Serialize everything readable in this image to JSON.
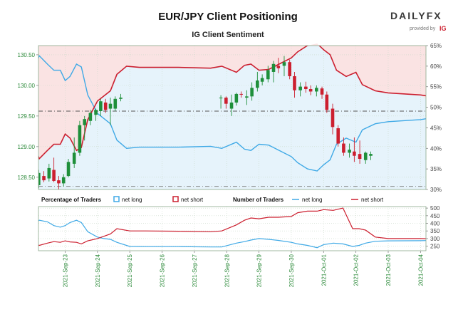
{
  "chart_data": {
    "type": "candlestick",
    "title": "EUR/JPY Client Positioning",
    "subtitle": "IG Client Sentiment",
    "brand": {
      "name": "DAILYFX",
      "tagline": "provided by",
      "partner": "IG"
    },
    "colors": {
      "up": "#1e8f3a",
      "down": "#cc1f2f",
      "net_long": "#3fa9e6",
      "net_short": "#cc1f2f",
      "short_zone": "#fae3e3",
      "long_zone": "#e6f3fb",
      "axis_text": "#2c8a3a",
      "grid": "#c9d9c9"
    },
    "x_dates": [
      "2021-Sep-23",
      "2021-Sep-24",
      "2021-Sep-25",
      "2021-Sep-26",
      "2021-Sep-27",
      "2021-Sep-28",
      "2021-Sep-29",
      "2021-Sep-30",
      "2021-Oct-01",
      "2021-Oct-02",
      "2021-Oct-03",
      "2021-Oct-04"
    ],
    "price_axis": {
      "ylim": [
        128.3,
        130.65
      ],
      "ticks": [
        "128.50",
        "129.00",
        "129.50",
        "130.00",
        "130.50"
      ],
      "current_price": 129.58
    },
    "pct_axis": {
      "ylim": [
        30,
        65
      ],
      "ticks": [
        "30%",
        "35%",
        "40%",
        "45%",
        "50%",
        "55%",
        "60%",
        "65%"
      ]
    },
    "count_axis": {
      "ylim": [
        220,
        510
      ],
      "ticks": [
        "250",
        "300",
        "350",
        "400",
        "450",
        "500"
      ]
    },
    "candles": [
      {
        "x": -0.82,
        "o": 128.37,
        "h": 128.62,
        "l": 128.32,
        "c": 128.57
      },
      {
        "x": -0.66,
        "o": 128.52,
        "h": 128.6,
        "l": 128.42,
        "c": 128.45
      },
      {
        "x": -0.5,
        "o": 128.48,
        "h": 128.72,
        "l": 128.43,
        "c": 128.65
      },
      {
        "x": -0.35,
        "o": 128.62,
        "h": 128.82,
        "l": 128.42,
        "c": 128.44
      },
      {
        "x": -0.2,
        "o": 128.45,
        "h": 128.52,
        "l": 128.3,
        "c": 128.4
      },
      {
        "x": -0.05,
        "o": 128.4,
        "h": 128.55,
        "l": 128.35,
        "c": 128.5
      },
      {
        "x": 0.1,
        "o": 128.52,
        "h": 128.8,
        "l": 128.5,
        "c": 128.75
      },
      {
        "x": 0.28,
        "o": 128.72,
        "h": 129.15,
        "l": 128.65,
        "c": 128.9
      },
      {
        "x": 0.45,
        "o": 128.9,
        "h": 129.42,
        "l": 128.85,
        "c": 129.35
      },
      {
        "x": 0.6,
        "o": 129.35,
        "h": 129.5,
        "l": 129.1,
        "c": 129.45
      },
      {
        "x": 0.78,
        "o": 129.42,
        "h": 129.6,
        "l": 129.35,
        "c": 129.55
      },
      {
        "x": 0.95,
        "o": 129.52,
        "h": 129.62,
        "l": 129.42,
        "c": 129.6
      },
      {
        "x": 1.1,
        "o": 129.58,
        "h": 129.78,
        "l": 129.5,
        "c": 129.74
      },
      {
        "x": 1.25,
        "o": 129.72,
        "h": 129.78,
        "l": 129.55,
        "c": 129.6
      },
      {
        "x": 1.4,
        "o": 129.62,
        "h": 129.8,
        "l": 129.35,
        "c": 129.7
      },
      {
        "x": 1.55,
        "o": 129.62,
        "h": 129.82,
        "l": 129.58,
        "c": 129.78
      },
      {
        "x": 1.72,
        "o": 129.78,
        "h": 129.86,
        "l": 129.74,
        "c": 129.8
      },
      {
        "x": 4.82,
        "o": 129.79,
        "h": 129.84,
        "l": 129.62,
        "c": 129.8
      },
      {
        "x": 4.98,
        "o": 129.8,
        "h": 129.82,
        "l": 129.62,
        "c": 129.7
      },
      {
        "x": 5.15,
        "o": 129.62,
        "h": 129.85,
        "l": 129.5,
        "c": 129.72
      },
      {
        "x": 5.3,
        "o": 129.72,
        "h": 129.88,
        "l": 129.67,
        "c": 129.86
      },
      {
        "x": 5.45,
        "o": 129.86,
        "h": 129.9,
        "l": 129.8,
        "c": 129.85
      },
      {
        "x": 5.62,
        "o": 129.8,
        "h": 129.92,
        "l": 129.68,
        "c": 129.82
      },
      {
        "x": 5.78,
        "o": 129.82,
        "h": 130.05,
        "l": 129.75,
        "c": 129.96
      },
      {
        "x": 5.95,
        "o": 129.96,
        "h": 130.22,
        "l": 129.9,
        "c": 130.08
      },
      {
        "x": 6.1,
        "o": 130.06,
        "h": 130.18,
        "l": 130.0,
        "c": 130.12
      },
      {
        "x": 6.28,
        "o": 130.1,
        "h": 130.32,
        "l": 130.05,
        "c": 130.25
      },
      {
        "x": 6.45,
        "o": 130.22,
        "h": 130.4,
        "l": 130.05,
        "c": 130.35
      },
      {
        "x": 6.6,
        "o": 130.32,
        "h": 130.45,
        "l": 130.2,
        "c": 130.28
      },
      {
        "x": 6.78,
        "o": 130.32,
        "h": 130.48,
        "l": 130.15,
        "c": 130.38
      },
      {
        "x": 6.95,
        "o": 130.38,
        "h": 130.42,
        "l": 130.1,
        "c": 130.15
      },
      {
        "x": 7.1,
        "o": 130.15,
        "h": 130.22,
        "l": 129.8,
        "c": 129.92
      },
      {
        "x": 7.28,
        "o": 129.92,
        "h": 130.05,
        "l": 129.82,
        "c": 129.98
      },
      {
        "x": 7.45,
        "o": 129.98,
        "h": 130.06,
        "l": 129.88,
        "c": 129.94
      },
      {
        "x": 7.6,
        "o": 129.94,
        "h": 130.0,
        "l": 129.84,
        "c": 129.9
      },
      {
        "x": 7.78,
        "o": 129.9,
        "h": 130.0,
        "l": 129.82,
        "c": 129.96
      },
      {
        "x": 7.95,
        "o": 129.95,
        "h": 129.98,
        "l": 129.78,
        "c": 129.85
      },
      {
        "x": 8.1,
        "o": 129.85,
        "h": 129.9,
        "l": 129.55,
        "c": 129.6
      },
      {
        "x": 8.28,
        "o": 129.62,
        "h": 129.7,
        "l": 129.2,
        "c": 129.32
      },
      {
        "x": 8.45,
        "o": 129.3,
        "h": 129.35,
        "l": 129.0,
        "c": 129.05
      },
      {
        "x": 8.62,
        "o": 129.05,
        "h": 129.15,
        "l": 128.85,
        "c": 128.9
      },
      {
        "x": 8.8,
        "o": 128.9,
        "h": 129.05,
        "l": 128.82,
        "c": 128.95
      },
      {
        "x": 8.95,
        "o": 128.92,
        "h": 129.15,
        "l": 128.75,
        "c": 128.85
      },
      {
        "x": 9.12,
        "o": 128.88,
        "h": 129.1,
        "l": 128.72,
        "c": 128.8
      },
      {
        "x": 9.3,
        "o": 128.78,
        "h": 128.92,
        "l": 128.72,
        "c": 128.9
      },
      {
        "x": 9.46,
        "o": 128.85,
        "h": 128.92,
        "l": 128.78,
        "c": 128.88
      },
      {
        "x": 11.28,
        "o": 128.6,
        "h": 128.9,
        "l": 128.4,
        "c": 128.88
      },
      {
        "x": 11.46,
        "o": 128.85,
        "h": 128.95,
        "l": 128.7,
        "c": 128.9
      },
      {
        "x": 11.62,
        "o": 128.9,
        "h": 128.95,
        "l": 128.82,
        "c": 128.88
      },
      {
        "x": 11.78,
        "o": 128.9,
        "h": 129.22,
        "l": 128.85,
        "c": 129.2
      }
    ],
    "series": [
      {
        "name": "net long",
        "percent": [
          [
            -0.95,
            59.8
          ],
          [
            -0.8,
            62.5
          ],
          [
            -0.55,
            60.5
          ],
          [
            -0.35,
            59.0
          ],
          [
            -0.15,
            59.0
          ],
          [
            0.0,
            56.5
          ],
          [
            0.15,
            57.5
          ],
          [
            0.35,
            60.5
          ],
          [
            0.5,
            59.8
          ],
          [
            0.7,
            53.0
          ],
          [
            1.0,
            48.5
          ],
          [
            1.4,
            46.0
          ],
          [
            1.6,
            42.0
          ],
          [
            1.9,
            40.0
          ],
          [
            2.3,
            40.3
          ],
          [
            3.5,
            40.3
          ],
          [
            4.5,
            40.5
          ],
          [
            4.85,
            40.0
          ],
          [
            5.3,
            41.5
          ],
          [
            5.55,
            39.8
          ],
          [
            5.75,
            39.5
          ],
          [
            6.0,
            41.0
          ],
          [
            6.3,
            40.8
          ],
          [
            6.6,
            39.6
          ],
          [
            7.0,
            38.0
          ],
          [
            7.2,
            36.5
          ],
          [
            7.5,
            35.0
          ],
          [
            7.8,
            34.5
          ],
          [
            8.0,
            36.0
          ],
          [
            8.2,
            37.2
          ],
          [
            8.4,
            41.0
          ],
          [
            8.7,
            42.5
          ],
          [
            9.0,
            41.5
          ],
          [
            9.2,
            44.5
          ],
          [
            9.6,
            46.0
          ],
          [
            10.0,
            46.5
          ],
          [
            11.0,
            47.0
          ],
          [
            11.8,
            48.0
          ],
          [
            12.0,
            49.5
          ]
        ],
        "traders": [
          [
            -0.95,
            395
          ],
          [
            -0.8,
            420
          ],
          [
            -0.55,
            410
          ],
          [
            -0.35,
            385
          ],
          [
            -0.15,
            375
          ],
          [
            0.0,
            385
          ],
          [
            0.15,
            405
          ],
          [
            0.35,
            420
          ],
          [
            0.5,
            405
          ],
          [
            0.7,
            345
          ],
          [
            1.0,
            310
          ],
          [
            1.2,
            300
          ],
          [
            1.4,
            295
          ],
          [
            1.6,
            275
          ],
          [
            2.0,
            248
          ],
          [
            2.5,
            247
          ],
          [
            3.5,
            247
          ],
          [
            4.5,
            245
          ],
          [
            4.85,
            245
          ],
          [
            5.3,
            270
          ],
          [
            5.55,
            280
          ],
          [
            5.75,
            290
          ],
          [
            6.0,
            300
          ],
          [
            6.3,
            295
          ],
          [
            6.6,
            288
          ],
          [
            7.0,
            275
          ],
          [
            7.2,
            265
          ],
          [
            7.5,
            255
          ],
          [
            7.8,
            240
          ],
          [
            8.0,
            260
          ],
          [
            8.3,
            270
          ],
          [
            8.6,
            265
          ],
          [
            8.9,
            248
          ],
          [
            9.1,
            255
          ],
          [
            9.3,
            270
          ],
          [
            9.6,
            282
          ],
          [
            10.0,
            285
          ],
          [
            11.0,
            286
          ],
          [
            11.8,
            290
          ],
          [
            12.0,
            298
          ]
        ]
      },
      {
        "name": "net short",
        "percent": [
          [
            -0.95,
            40.2
          ],
          [
            -0.8,
            37.5
          ],
          [
            -0.55,
            39.5
          ],
          [
            -0.35,
            41.0
          ],
          [
            -0.15,
            41.0
          ],
          [
            0.0,
            43.5
          ],
          [
            0.15,
            42.5
          ],
          [
            0.35,
            39.5
          ],
          [
            0.5,
            40.2
          ],
          [
            0.7,
            47.0
          ],
          [
            1.0,
            51.5
          ],
          [
            1.4,
            54.0
          ],
          [
            1.6,
            58.0
          ],
          [
            1.9,
            60.0
          ],
          [
            2.3,
            59.7
          ],
          [
            3.5,
            59.7
          ],
          [
            4.5,
            59.5
          ],
          [
            4.85,
            60.0
          ],
          [
            5.3,
            58.5
          ],
          [
            5.55,
            60.2
          ],
          [
            5.75,
            60.5
          ],
          [
            6.0,
            59.0
          ],
          [
            6.3,
            59.2
          ],
          [
            6.6,
            60.4
          ],
          [
            7.0,
            62.0
          ],
          [
            7.2,
            63.5
          ],
          [
            7.5,
            65.0
          ],
          [
            7.8,
            65.5
          ],
          [
            8.0,
            64.0
          ],
          [
            8.2,
            62.8
          ],
          [
            8.4,
            59.0
          ],
          [
            8.7,
            57.5
          ],
          [
            9.0,
            58.5
          ],
          [
            9.2,
            55.5
          ],
          [
            9.6,
            54.0
          ],
          [
            10.0,
            53.5
          ],
          [
            11.0,
            53.0
          ],
          [
            11.8,
            52.0
          ],
          [
            12.0,
            50.5
          ]
        ],
        "traders": [
          [
            -0.95,
            265
          ],
          [
            -0.8,
            255
          ],
          [
            -0.55,
            270
          ],
          [
            -0.35,
            280
          ],
          [
            -0.15,
            275
          ],
          [
            0.0,
            285
          ],
          [
            0.15,
            278
          ],
          [
            0.35,
            275
          ],
          [
            0.5,
            265
          ],
          [
            0.7,
            285
          ],
          [
            1.0,
            300
          ],
          [
            1.2,
            315
          ],
          [
            1.4,
            330
          ],
          [
            1.6,
            365
          ],
          [
            2.0,
            350
          ],
          [
            2.5,
            350
          ],
          [
            3.5,
            348
          ],
          [
            4.5,
            345
          ],
          [
            4.85,
            350
          ],
          [
            5.3,
            390
          ],
          [
            5.55,
            420
          ],
          [
            5.75,
            435
          ],
          [
            6.0,
            430
          ],
          [
            6.3,
            440
          ],
          [
            6.6,
            440
          ],
          [
            7.0,
            445
          ],
          [
            7.2,
            470
          ],
          [
            7.5,
            480
          ],
          [
            7.8,
            480
          ],
          [
            8.0,
            490
          ],
          [
            8.3,
            485
          ],
          [
            8.6,
            500
          ],
          [
            8.9,
            365
          ],
          [
            9.1,
            365
          ],
          [
            9.3,
            355
          ],
          [
            9.6,
            310
          ],
          [
            10.0,
            300
          ],
          [
            11.0,
            300
          ],
          [
            11.8,
            295
          ],
          [
            12.0,
            300
          ]
        ]
      }
    ],
    "legend_lower": {
      "percentage_title": "Percentage of Traders",
      "net_long": "net long",
      "net_short": "net short",
      "number_title": "Number of Traders",
      "num_net_long": "net long",
      "num_net_short": "net short"
    }
  }
}
